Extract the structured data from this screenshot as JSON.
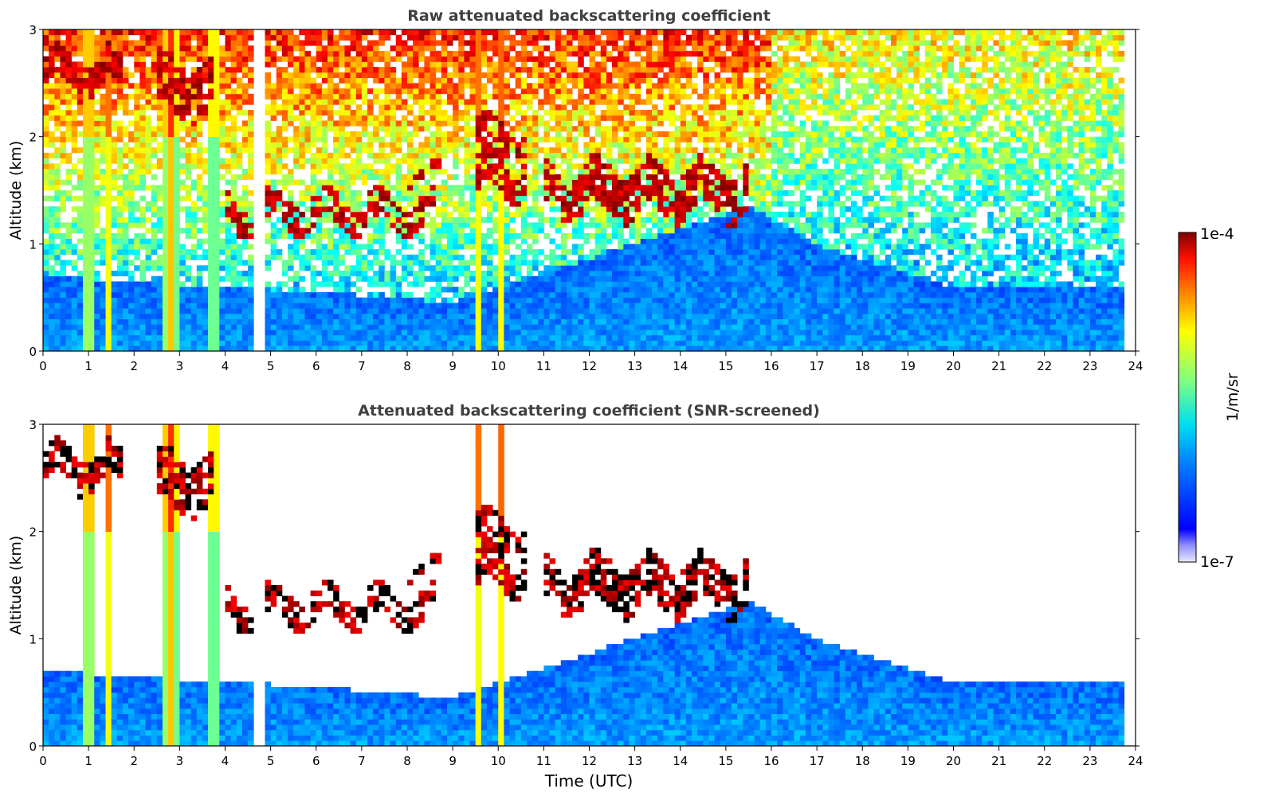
{
  "chart_data": [
    {
      "type": "heatmap",
      "title": "Raw attenuated backscattering coefficient",
      "xlabel": "",
      "ylabel": "Altitude (km)",
      "xlim": [
        0,
        24
      ],
      "ylim": [
        0,
        3
      ],
      "x_ticks": [
        "0",
        "1",
        "2",
        "3",
        "4",
        "5",
        "6",
        "7",
        "8",
        "9",
        "10",
        "11",
        "12",
        "13",
        "14",
        "15",
        "16",
        "17",
        "18",
        "19",
        "20",
        "21",
        "22",
        "23",
        "24"
      ],
      "y_ticks": [
        "0",
        "1",
        "2",
        "3"
      ],
      "scale": "log",
      "screened": false,
      "cloud_layers": [
        {
          "t_start": 0.0,
          "t_end": 1.7,
          "z_base": 2.3,
          "z_top": 2.9
        },
        {
          "t_start": 2.5,
          "t_end": 3.7,
          "z_base": 2.0,
          "z_top": 2.9
        },
        {
          "t_start": 4.0,
          "t_end": 8.6,
          "z_base": 1.05,
          "z_top": 1.55
        },
        {
          "t_start": 8.0,
          "t_end": 8.8,
          "z_base": 1.55,
          "z_top": 1.75
        },
        {
          "t_start": 9.5,
          "t_end": 10.6,
          "z_base": 1.2,
          "z_top": 2.4
        },
        {
          "t_start": 11.0,
          "t_end": 15.5,
          "z_base": 1.1,
          "z_top": 1.9
        }
      ],
      "precip_columns": [
        {
          "t": 1.0,
          "width": 0.25
        },
        {
          "t": 1.45,
          "width": 0.1
        },
        {
          "t": 2.8,
          "width": 0.45
        },
        {
          "t": 3.75,
          "width": 0.2
        },
        {
          "t": 9.55,
          "width": 0.1
        },
        {
          "t": 10.05,
          "width": 0.12
        }
      ],
      "missing_data": [
        {
          "t_start": 4.6,
          "t_end": 4.85
        },
        {
          "t_start": 23.8,
          "t_end": 24.0
        }
      ]
    },
    {
      "type": "heatmap",
      "title": "Attenuated backscattering coefficient (SNR-screened)",
      "xlabel": "Time (UTC)",
      "ylabel": "Altitude (km)",
      "xlim": [
        0,
        24
      ],
      "ylim": [
        0,
        3
      ],
      "x_ticks": [
        "0",
        "1",
        "2",
        "3",
        "4",
        "5",
        "6",
        "7",
        "8",
        "9",
        "10",
        "11",
        "12",
        "13",
        "14",
        "15",
        "16",
        "17",
        "18",
        "19",
        "20",
        "21",
        "22",
        "23",
        "24"
      ],
      "y_ticks": [
        "0",
        "1",
        "2",
        "3"
      ],
      "scale": "log",
      "screened": true,
      "boundary_layer_top": [
        {
          "t": 0,
          "z": 0.7
        },
        {
          "t": 6,
          "z": 0.55
        },
        {
          "t": 9,
          "z": 0.45
        },
        {
          "t": 15.5,
          "z": 1.35
        },
        {
          "t": 17,
          "z": 1.0
        },
        {
          "t": 20,
          "z": 0.6
        },
        {
          "t": 23.8,
          "z": 0.6
        }
      ]
    }
  ],
  "colorbar": {
    "label": "1/m/sr",
    "max_label": "1e-4",
    "min_label": "1e-7",
    "colormap": "jet"
  },
  "colors": {
    "title": "#404040",
    "background": "#ffffff",
    "jet_low": "#00008f",
    "jet_high": "#800000"
  }
}
